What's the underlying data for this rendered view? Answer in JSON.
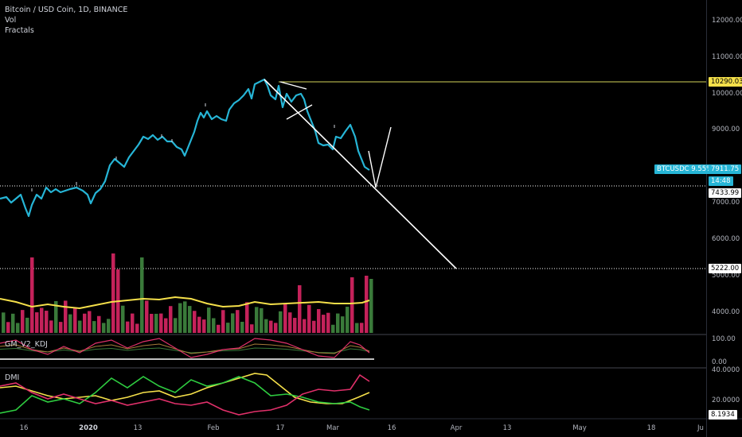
{
  "legend": {
    "symbol_line": "Bitcoin / USD Coin, 1D, BINANCE",
    "vol_label": "Vol",
    "fractals_label": "Fractals"
  },
  "panes": {
    "kdj_label": "GM_V2_KDJ",
    "dmi_label": "DMI"
  },
  "price_axis": {
    "ticks": [
      "12000.00",
      "11000.00",
      "10000.00",
      "9000.00",
      "7000.00",
      "6000.00",
      "5000.00",
      "4000.00"
    ],
    "resistance_label": "10290.03",
    "symbol_tag": "BTCUSDC 9.55%",
    "last_price": "7911.75",
    "countdown": "14:48",
    "support_label": "7433.99",
    "target_label": "5222.00"
  },
  "kdj_axis": {
    "ticks": [
      "100.00",
      "0.00"
    ]
  },
  "dmi_axis": {
    "ticks": [
      "40.0000",
      "20.0000",
      "8.1934"
    ]
  },
  "time_axis": {
    "ticks": [
      {
        "label": "16",
        "bold": false
      },
      {
        "label": "2020",
        "bold": true
      },
      {
        "label": "13",
        "bold": false
      },
      {
        "label": "Feb",
        "bold": false
      },
      {
        "label": "17",
        "bold": false
      },
      {
        "label": "Mar",
        "bold": false
      },
      {
        "label": "16",
        "bold": false
      },
      {
        "label": "Apr",
        "bold": false
      },
      {
        "label": "13",
        "bold": false
      },
      {
        "label": "May",
        "bold": false
      },
      {
        "label": "18",
        "bold": false
      },
      {
        "label": "Ju",
        "bold": false
      }
    ]
  },
  "colors": {
    "price_line": "#26b5d6",
    "resistance": "#d4d45a",
    "up_volume": "#3a7a3a",
    "down_volume": "#c4225a",
    "volume_ma": "#f5e04a",
    "symbol_tag_bg": "#26b5d6",
    "dmi_plus": "#2ecc40",
    "dmi_minus": "#e0306a",
    "adx": "#f5e04a"
  }
}
